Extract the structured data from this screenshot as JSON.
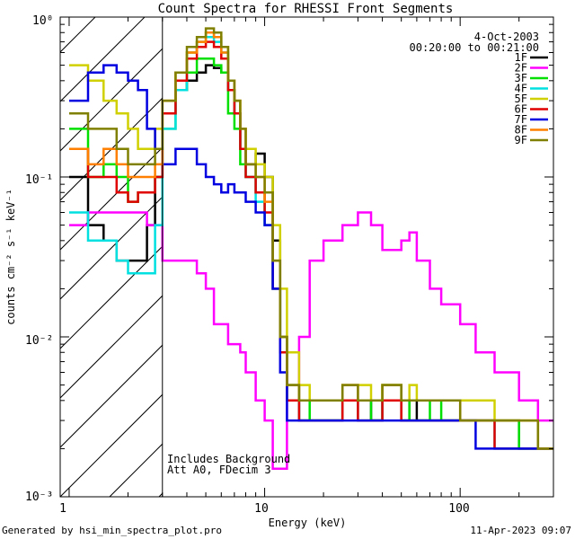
{
  "chart_data": {
    "type": "line",
    "title": "Count Spectra for RHESSI Front Segments",
    "xlabel": "Energy (keV)",
    "ylabel": "counts cm⁻² s⁻¹ keV⁻¹",
    "xscale": "log",
    "yscale": "log",
    "xlim": [
      0.9,
      300
    ],
    "ylim": [
      0.001,
      1
    ],
    "x_tick_labels": [
      "1",
      "10",
      "100"
    ],
    "y_tick_labels": [
      "10⁻³",
      "10⁻²",
      "10⁻¹",
      "10⁰"
    ],
    "attenuator_edge_keV": 3,
    "date": "4-Oct-2003",
    "time_range": "00:20:00 to 00:21:00",
    "annotations": [
      "Includes Background",
      "Att A0, FDecim 3"
    ],
    "footer_left": "Generated by hsi_min_spectra_plot.pro",
    "footer_right": "11-Apr-2023 09:07",
    "x": [
      1.0,
      1.25,
      1.5,
      1.75,
      2.0,
      2.25,
      2.5,
      2.75,
      3.0,
      3.5,
      4.0,
      4.5,
      5.0,
      5.5,
      6.0,
      6.5,
      7.0,
      7.5,
      8.0,
      9.0,
      10.0,
      11.0,
      12.0,
      13.0,
      15.0,
      17.0,
      20.0,
      25.0,
      30.0,
      35.0,
      40.0,
      50.0,
      55.0,
      60.0,
      70.0,
      80.0,
      100.0,
      120.0,
      150.0,
      200.0,
      250.0
    ],
    "series": [
      {
        "name": "1F",
        "color": "#000000",
        "values": [
          0.1,
          0.05,
          0.04,
          0.03,
          0.03,
          0.03,
          0.05,
          0.1,
          0.25,
          0.35,
          0.4,
          0.45,
          0.5,
          0.48,
          0.45,
          0.35,
          0.25,
          0.15,
          0.12,
          0.14,
          0.1,
          0.04,
          0.01,
          0.004,
          0.003,
          0.003,
          0.003,
          0.004,
          0.004,
          0.003,
          0.004,
          0.003,
          0.004,
          0.003,
          0.003,
          0.003,
          0.003,
          0.003,
          0.003,
          0.002,
          0.002
        ]
      },
      {
        "name": "2F",
        "color": "#ff00ff",
        "values": [
          0.05,
          0.06,
          0.06,
          0.06,
          0.06,
          0.06,
          0.05,
          0.05,
          0.03,
          0.03,
          0.03,
          0.025,
          0.02,
          0.012,
          0.012,
          0.009,
          0.009,
          0.008,
          0.006,
          0.004,
          0.003,
          0.0015,
          0.0015,
          0.004,
          0.01,
          0.03,
          0.04,
          0.05,
          0.06,
          0.05,
          0.035,
          0.04,
          0.045,
          0.03,
          0.02,
          0.016,
          0.012,
          0.008,
          0.006,
          0.004,
          0.003
        ]
      },
      {
        "name": "3F",
        "color": "#00e000",
        "values": [
          0.2,
          0.1,
          0.12,
          0.1,
          0.07,
          0.08,
          0.08,
          0.1,
          0.2,
          0.35,
          0.45,
          0.55,
          0.55,
          0.5,
          0.45,
          0.25,
          0.2,
          0.12,
          0.1,
          0.08,
          0.05,
          0.02,
          0.01,
          0.005,
          0.004,
          0.003,
          0.003,
          0.004,
          0.004,
          0.003,
          0.005,
          0.004,
          0.003,
          0.003,
          0.004,
          0.003,
          0.003,
          0.003,
          0.003,
          0.002,
          0.002
        ]
      },
      {
        "name": "4F",
        "color": "#00e0e0",
        "values": [
          0.06,
          0.04,
          0.04,
          0.03,
          0.025,
          0.025,
          0.025,
          0.05,
          0.2,
          0.35,
          0.6,
          0.7,
          0.75,
          0.7,
          0.6,
          0.35,
          0.25,
          0.15,
          0.1,
          0.07,
          0.05,
          0.02,
          0.008,
          0.004,
          0.003,
          0.003,
          0.003,
          0.004,
          0.003,
          0.003,
          0.004,
          0.003,
          0.003,
          0.003,
          0.003,
          0.003,
          0.003,
          0.003,
          0.002,
          0.002,
          0.002
        ]
      },
      {
        "name": "5F",
        "color": "#d0d000",
        "values": [
          0.5,
          0.4,
          0.3,
          0.25,
          0.2,
          0.15,
          0.15,
          0.2,
          0.3,
          0.45,
          0.6,
          0.7,
          0.8,
          0.75,
          0.65,
          0.4,
          0.3,
          0.2,
          0.15,
          0.12,
          0.1,
          0.05,
          0.02,
          0.008,
          0.005,
          0.004,
          0.004,
          0.005,
          0.005,
          0.004,
          0.005,
          0.004,
          0.005,
          0.004,
          0.004,
          0.004,
          0.004,
          0.004,
          0.003,
          0.003,
          0.002
        ]
      },
      {
        "name": "6F",
        "color": "#e00000",
        "values": [
          0.15,
          0.1,
          0.1,
          0.08,
          0.07,
          0.08,
          0.08,
          0.1,
          0.25,
          0.4,
          0.55,
          0.65,
          0.7,
          0.65,
          0.55,
          0.35,
          0.25,
          0.15,
          0.1,
          0.08,
          0.06,
          0.02,
          0.008,
          0.004,
          0.003,
          0.003,
          0.003,
          0.004,
          0.003,
          0.003,
          0.004,
          0.003,
          0.003,
          0.003,
          0.003,
          0.003,
          0.003,
          0.003,
          0.002,
          0.002,
          0.002
        ]
      },
      {
        "name": "7F",
        "color": "#0000e0",
        "values": [
          0.3,
          0.45,
          0.5,
          0.45,
          0.4,
          0.35,
          0.2,
          0.15,
          0.12,
          0.15,
          0.15,
          0.12,
          0.1,
          0.09,
          0.08,
          0.09,
          0.08,
          0.08,
          0.07,
          0.06,
          0.05,
          0.02,
          0.006,
          0.003,
          0.003,
          0.003,
          0.003,
          0.003,
          0.003,
          0.003,
          0.003,
          0.003,
          0.003,
          0.003,
          0.003,
          0.003,
          0.003,
          0.002,
          0.002,
          0.002,
          0.002
        ]
      },
      {
        "name": "8F",
        "color": "#ff8000",
        "values": [
          0.15,
          0.12,
          0.15,
          0.12,
          0.1,
          0.1,
          0.1,
          0.12,
          0.3,
          0.45,
          0.6,
          0.7,
          0.8,
          0.75,
          0.6,
          0.4,
          0.3,
          0.2,
          0.12,
          0.1,
          0.07,
          0.03,
          0.01,
          0.005,
          0.004,
          0.004,
          0.004,
          0.005,
          0.004,
          0.004,
          0.005,
          0.004,
          0.004,
          0.004,
          0.004,
          0.004,
          0.003,
          0.003,
          0.003,
          0.003,
          0.002
        ]
      },
      {
        "name": "9F",
        "color": "#808000",
        "values": [
          0.25,
          0.2,
          0.2,
          0.15,
          0.12,
          0.12,
          0.12,
          0.15,
          0.3,
          0.45,
          0.65,
          0.75,
          0.85,
          0.8,
          0.65,
          0.4,
          0.3,
          0.2,
          0.12,
          0.1,
          0.08,
          0.03,
          0.01,
          0.005,
          0.004,
          0.004,
          0.004,
          0.005,
          0.004,
          0.004,
          0.005,
          0.004,
          0.004,
          0.004,
          0.004,
          0.004,
          0.003,
          0.003,
          0.003,
          0.003,
          0.002
        ]
      }
    ]
  }
}
